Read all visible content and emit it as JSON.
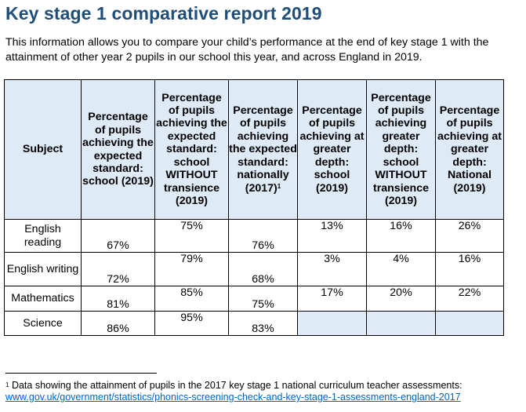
{
  "title": "Key stage 1 comparative report 2019",
  "intro": "This information allows you to compare your child’s performance at the end of key stage 1 with the attainment of other year 2 pupils in our school this year, and across England in 2019.",
  "table": {
    "headers": [
      "Subject",
      "Percentage of pupils achieving the expected standard: school (2019)",
      "Percentage of pupils achieving the expected standard: school WITHOUT transience (2019)",
      "Percentage of pupils achieving the expected standard: nationally (2017)",
      "Percentage of pupils achieving at greater depth: school (2019)",
      "Percentage of pupils achieving greater depth: school WITHOUT transience (2019)",
      "Percentage of pupils achieving at greater depth: National (2019)"
    ],
    "header_footnote_mark": "1",
    "rows": [
      {
        "subject": "English reading",
        "values": [
          "67%",
          "75%",
          "76%",
          "13%",
          "16%",
          "26%"
        ]
      },
      {
        "subject": "English writing",
        "values": [
          "72%",
          "79%",
          "68%",
          "3%",
          "4%",
          "16%"
        ]
      },
      {
        "subject": "Mathematics",
        "values": [
          "81%",
          "85%",
          "75%",
          "17%",
          "20%",
          "22%"
        ]
      },
      {
        "subject": "Science",
        "values": [
          "86%",
          "95%",
          "83%",
          "",
          "",
          ""
        ]
      }
    ]
  },
  "footnote": {
    "mark": "1",
    "text": "Data showing the attainment of pupils in the 2017 key stage 1 national curriculum teacher assessments:",
    "link": "www.gov.uk/government/statistics/phonics-screening-check-and-key-stage-1-assessments-england-2017"
  },
  "colors": {
    "title": "#1f4e79",
    "header_fill": "#deeaf6",
    "link": "#0563c1"
  }
}
